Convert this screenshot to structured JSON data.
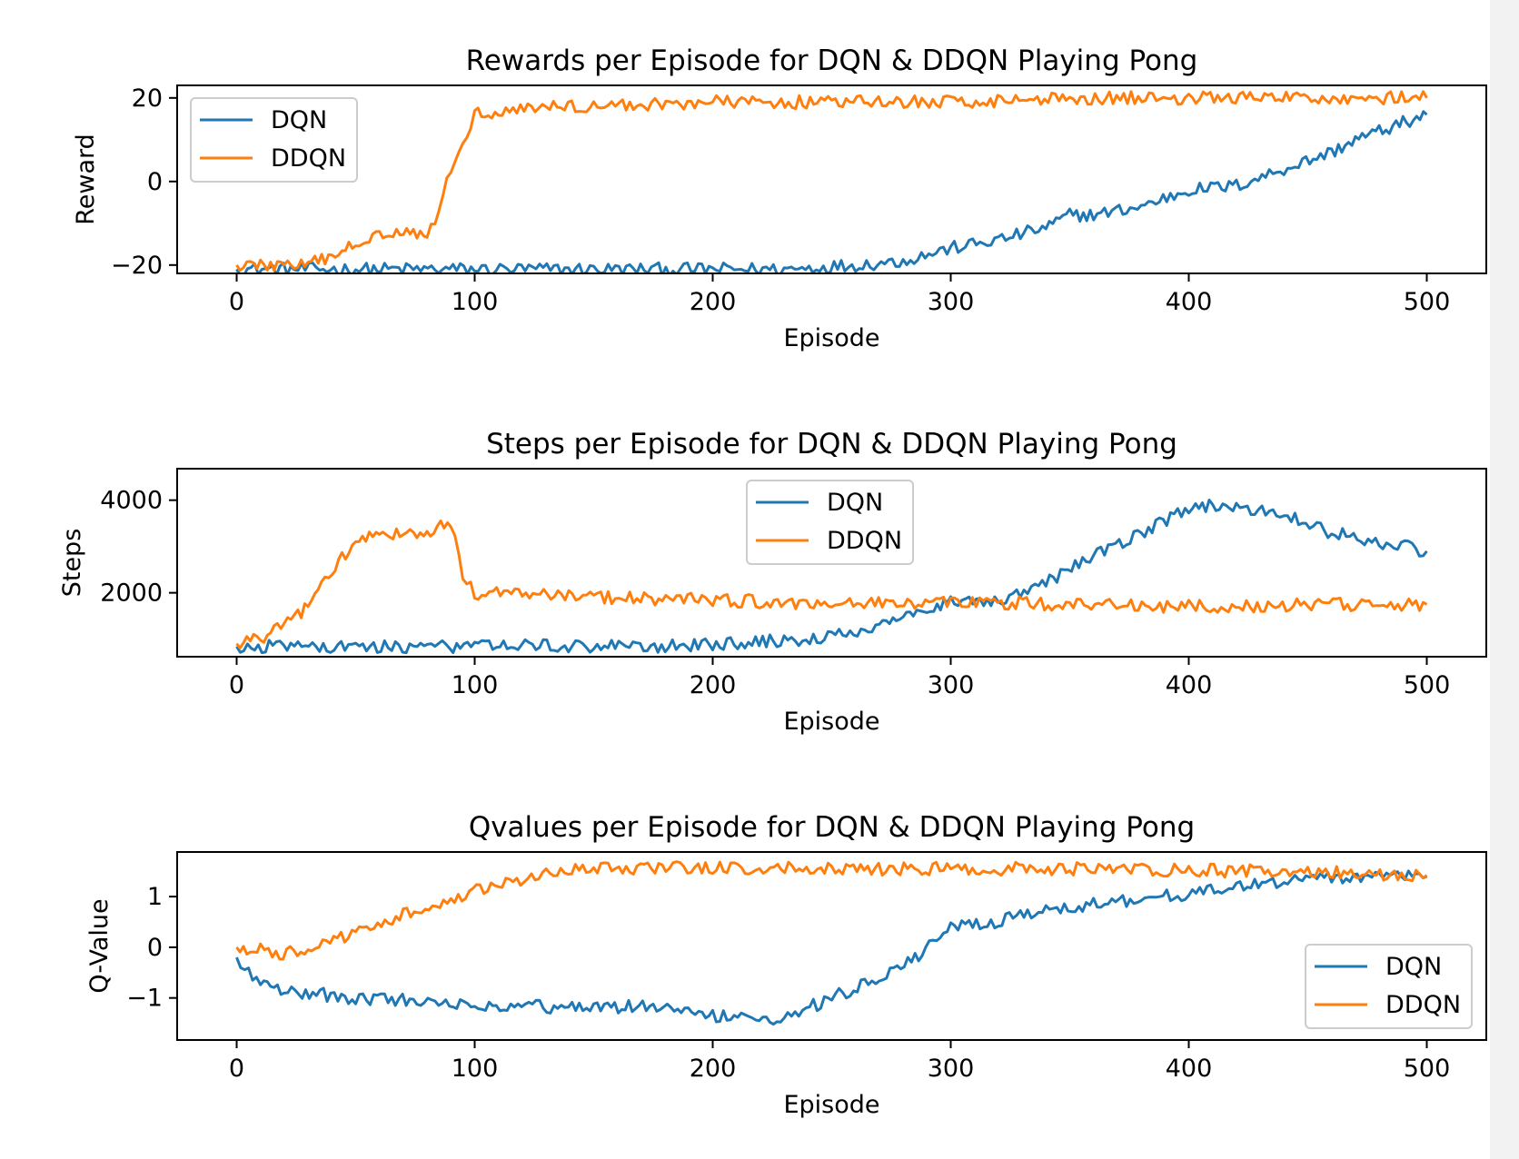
{
  "colors": {
    "DQN": "#1f77b4",
    "DDQN": "#ff7f0e",
    "axis": "#000000"
  },
  "chart_data": [
    {
      "type": "line",
      "title": "Rewards per Episode for DQN & DDQN Playing Pong",
      "xlabel": "Episode",
      "ylabel": "Reward",
      "xlim": [
        -25,
        525
      ],
      "ylim": [
        -22,
        23
      ],
      "xticks": [
        0,
        100,
        200,
        300,
        400,
        500
      ],
      "yticks": [
        -20,
        0,
        20
      ],
      "ytick_labels": [
        "−20",
        "0",
        "20"
      ],
      "legend": "upper-left",
      "grid": false,
      "series": [
        {
          "name": "DQN",
          "points": [
            [
              0,
              -21
            ],
            [
              50,
              -21
            ],
            [
              100,
              -21
            ],
            [
              150,
              -21
            ],
            [
              200,
              -21
            ],
            [
              230,
              -21
            ],
            [
              260,
              -20
            ],
            [
              280,
              -19
            ],
            [
              300,
              -16
            ],
            [
              320,
              -14
            ],
            [
              340,
              -11
            ],
            [
              350,
              -8
            ],
            [
              360,
              -8
            ],
            [
              380,
              -6
            ],
            [
              400,
              -2
            ],
            [
              420,
              -1
            ],
            [
              440,
              3
            ],
            [
              460,
              7
            ],
            [
              470,
              10
            ],
            [
              480,
              12
            ],
            [
              490,
              14
            ],
            [
              500,
              16
            ]
          ],
          "noise": 1.0
        },
        {
          "name": "DDQN",
          "points": [
            [
              0,
              -20
            ],
            [
              10,
              -20
            ],
            [
              20,
              -20
            ],
            [
              30,
              -20
            ],
            [
              40,
              -18
            ],
            [
              50,
              -15
            ],
            [
              60,
              -12
            ],
            [
              70,
              -12
            ],
            [
              80,
              -12
            ],
            [
              85,
              -8
            ],
            [
              90,
              3
            ],
            [
              95,
              10
            ],
            [
              100,
              16
            ],
            [
              110,
              17
            ],
            [
              130,
              18
            ],
            [
              150,
              18
            ],
            [
              200,
              19
            ],
            [
              250,
              19
            ],
            [
              300,
              19
            ],
            [
              350,
              20
            ],
            [
              400,
              20
            ],
            [
              450,
              20
            ],
            [
              500,
              20
            ]
          ],
          "noise": 1.0
        }
      ]
    },
    {
      "type": "line",
      "title": "Steps per Episode for DQN & DDQN Playing Pong",
      "xlabel": "Episode",
      "ylabel": "Steps",
      "xlim": [
        -25,
        525
      ],
      "ylim": [
        620,
        4680
      ],
      "xticks": [
        0,
        100,
        200,
        300,
        400,
        500
      ],
      "yticks": [
        2000,
        4000
      ],
      "ytick_labels": [
        "2000",
        "4000"
      ],
      "legend": "upper-center",
      "grid": false,
      "series": [
        {
          "name": "DQN",
          "points": [
            [
              0,
              840
            ],
            [
              50,
              840
            ],
            [
              100,
              840
            ],
            [
              150,
              850
            ],
            [
              180,
              840
            ],
            [
              200,
              900
            ],
            [
              230,
              960
            ],
            [
              250,
              1050
            ],
            [
              270,
              1250
            ],
            [
              280,
              1500
            ],
            [
              290,
              1700
            ],
            [
              300,
              1800
            ],
            [
              320,
              1800
            ],
            [
              340,
              2200
            ],
            [
              360,
              2800
            ],
            [
              380,
              3300
            ],
            [
              400,
              3800
            ],
            [
              410,
              3900
            ],
            [
              420,
              3800
            ],
            [
              440,
              3700
            ],
            [
              460,
              3300
            ],
            [
              480,
              3100
            ],
            [
              500,
              2900
            ]
          ],
          "noise": 1.0
        },
        {
          "name": "DDQN",
          "points": [
            [
              0,
              900
            ],
            [
              10,
              1000
            ],
            [
              20,
              1300
            ],
            [
              30,
              1700
            ],
            [
              40,
              2500
            ],
            [
              50,
              3100
            ],
            [
              60,
              3300
            ],
            [
              70,
              3300
            ],
            [
              80,
              3300
            ],
            [
              90,
              3500
            ],
            [
              95,
              2300
            ],
            [
              100,
              2000
            ],
            [
              120,
              2000
            ],
            [
              150,
              1900
            ],
            [
              200,
              1850
            ],
            [
              250,
              1750
            ],
            [
              300,
              1800
            ],
            [
              350,
              1750
            ],
            [
              400,
              1700
            ],
            [
              450,
              1750
            ],
            [
              500,
              1750
            ]
          ],
          "noise": 1.0
        }
      ]
    },
    {
      "type": "line",
      "title": "Qvalues per Episode for DQN & DDQN Playing Pong",
      "xlabel": "Episode",
      "ylabel": "Q-Value",
      "xlim": [
        -25,
        525
      ],
      "ylim": [
        -1.83,
        1.88
      ],
      "xticks": [
        0,
        100,
        200,
        300,
        400,
        500
      ],
      "yticks": [
        -1,
        0,
        1
      ],
      "ytick_labels": [
        "−1",
        "0",
        "1"
      ],
      "legend": "lower-right",
      "grid": false,
      "series": [
        {
          "name": "DQN",
          "points": [
            [
              0,
              -0.2
            ],
            [
              5,
              -0.5
            ],
            [
              10,
              -0.65
            ],
            [
              20,
              -0.85
            ],
            [
              50,
              -1.0
            ],
            [
              100,
              -1.12
            ],
            [
              150,
              -1.2
            ],
            [
              175,
              -1.15
            ],
            [
              200,
              -1.35
            ],
            [
              230,
              -1.4
            ],
            [
              250,
              -1.0
            ],
            [
              270,
              -0.6
            ],
            [
              285,
              -0.2
            ],
            [
              300,
              0.4
            ],
            [
              320,
              0.5
            ],
            [
              340,
              0.75
            ],
            [
              360,
              0.85
            ],
            [
              380,
              0.95
            ],
            [
              400,
              1.05
            ],
            [
              420,
              1.2
            ],
            [
              440,
              1.3
            ],
            [
              460,
              1.35
            ],
            [
              480,
              1.38
            ],
            [
              500,
              1.4
            ]
          ],
          "noise": 1.0
        },
        {
          "name": "DDQN",
          "points": [
            [
              0,
              0.0
            ],
            [
              10,
              -0.05
            ],
            [
              15,
              -0.15
            ],
            [
              30,
              -0.05
            ],
            [
              50,
              0.3
            ],
            [
              70,
              0.65
            ],
            [
              90,
              0.95
            ],
            [
              110,
              1.25
            ],
            [
              130,
              1.45
            ],
            [
              150,
              1.55
            ],
            [
              200,
              1.58
            ],
            [
              250,
              1.55
            ],
            [
              300,
              1.55
            ],
            [
              350,
              1.55
            ],
            [
              400,
              1.52
            ],
            [
              450,
              1.48
            ],
            [
              500,
              1.42
            ]
          ],
          "noise": 1.0
        }
      ]
    }
  ]
}
